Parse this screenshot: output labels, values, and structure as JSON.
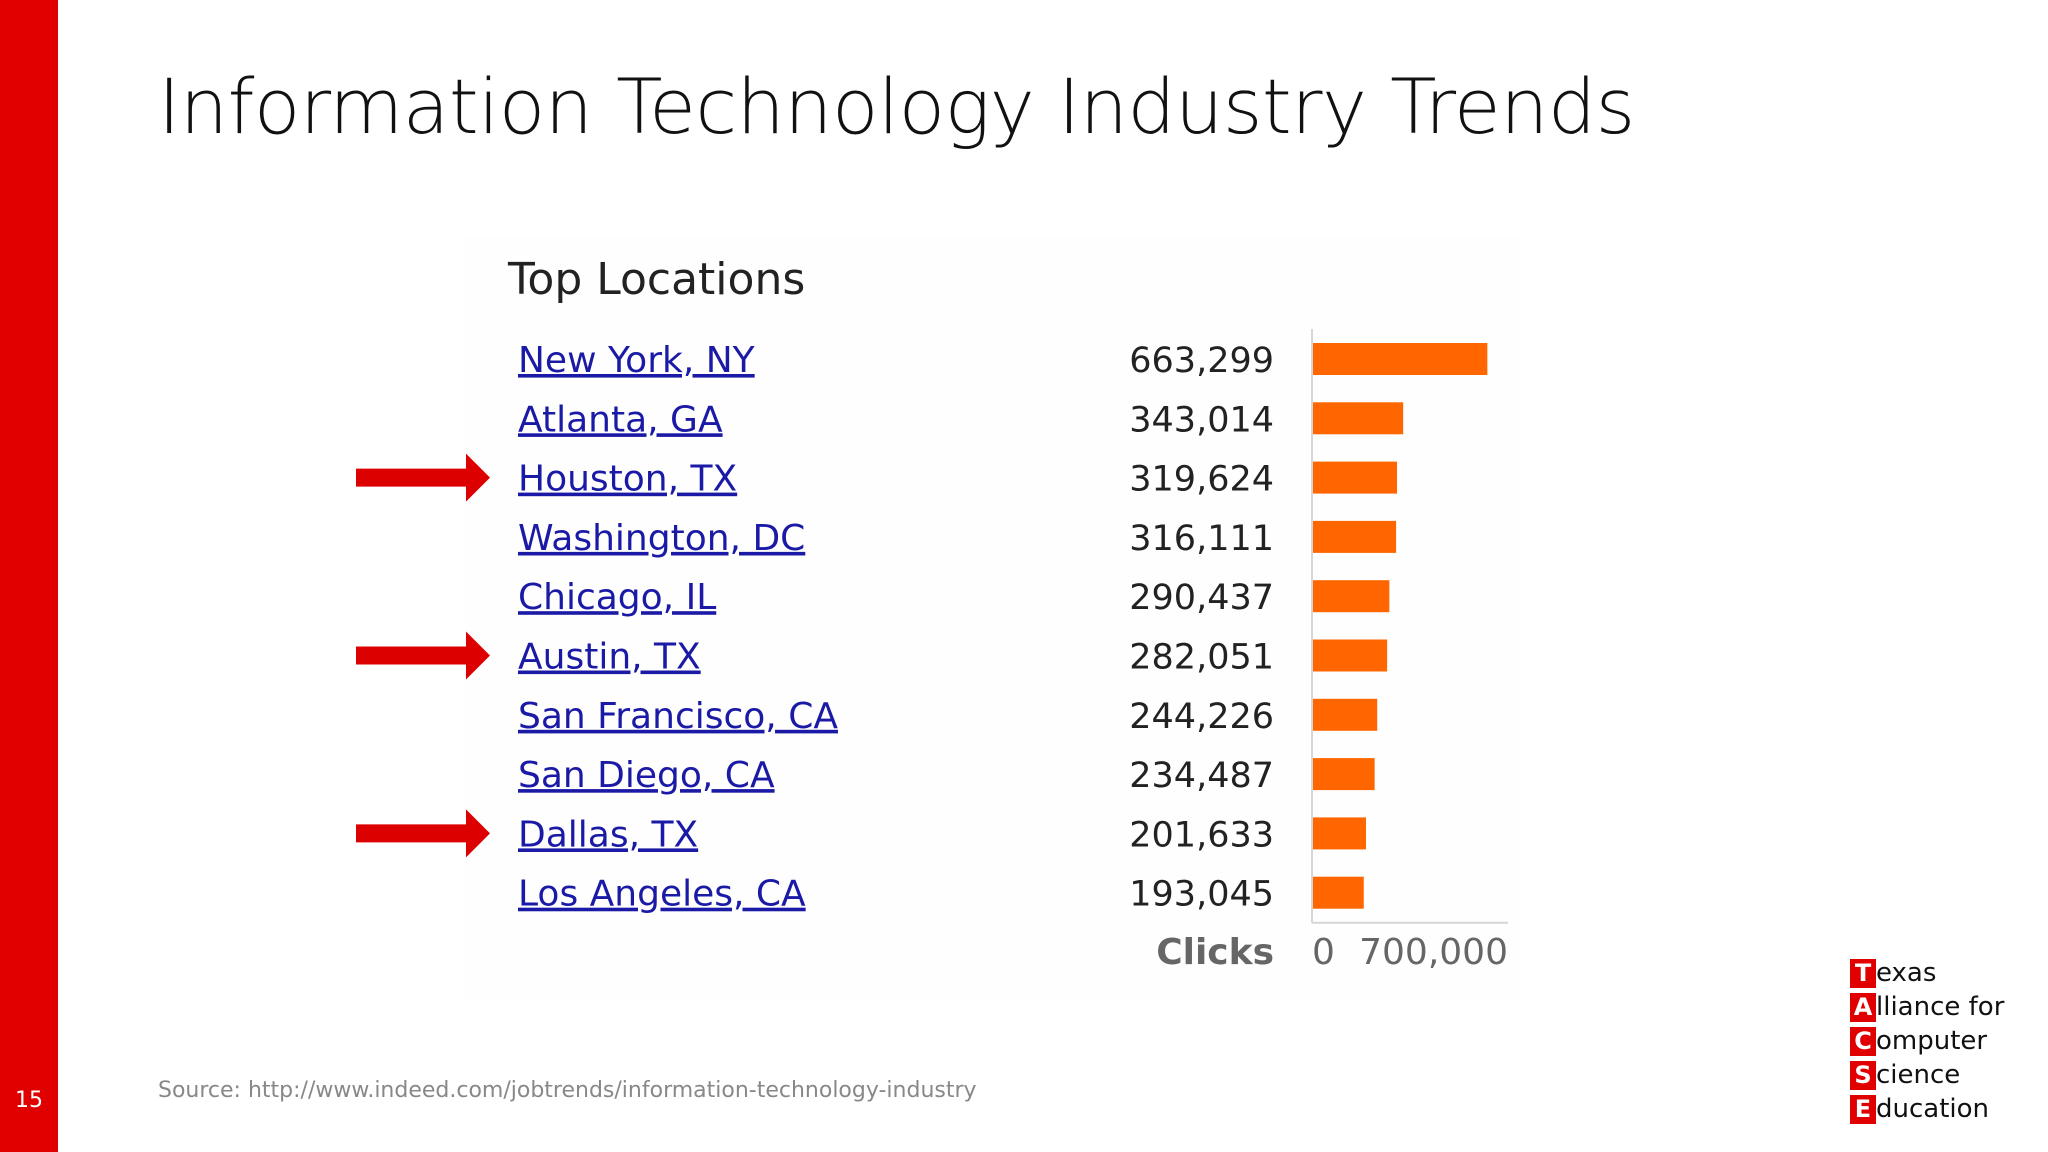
{
  "slide": {
    "title": "Information Technology Industry Trends",
    "number": "15",
    "source": "Source: http://www.indeed.com/jobtrends/information-technology-industry",
    "accent_color": "#e00000",
    "arrow_color": "#dd0000"
  },
  "logo": {
    "rows": [
      {
        "letter": "T",
        "rest": "exas"
      },
      {
        "letter": "A",
        "rest": "lliance for"
      },
      {
        "letter": "C",
        "rest": "omputer"
      },
      {
        "letter": "S",
        "rest": "cience"
      },
      {
        "letter": "E",
        "rest": "ducation"
      }
    ]
  },
  "chart_data": {
    "type": "bar",
    "orientation": "horizontal",
    "title": "Top Locations",
    "xlabel": "Clicks",
    "xlim": [
      0,
      700000
    ],
    "tick_labels": [
      "0",
      "700,000"
    ],
    "bar_color": "#ff6600",
    "highlighted": [
      "Houston, TX",
      "Austin, TX",
      "Dallas, TX"
    ],
    "categories": [
      "New York, NY",
      "Atlanta, GA",
      "Houston, TX",
      "Washington, DC",
      "Chicago, IL",
      "Austin, TX",
      "San Francisco, CA",
      "San Diego, CA",
      "Dallas, TX",
      "Los Angeles, CA"
    ],
    "values": [
      663299,
      343014,
      319624,
      316111,
      290437,
      282051,
      244226,
      234487,
      201633,
      193045
    ],
    "value_labels": [
      "663,299",
      "343,014",
      "319,624",
      "316,111",
      "290,437",
      "282,051",
      "244,226",
      "234,487",
      "201,633",
      "193,045"
    ]
  }
}
